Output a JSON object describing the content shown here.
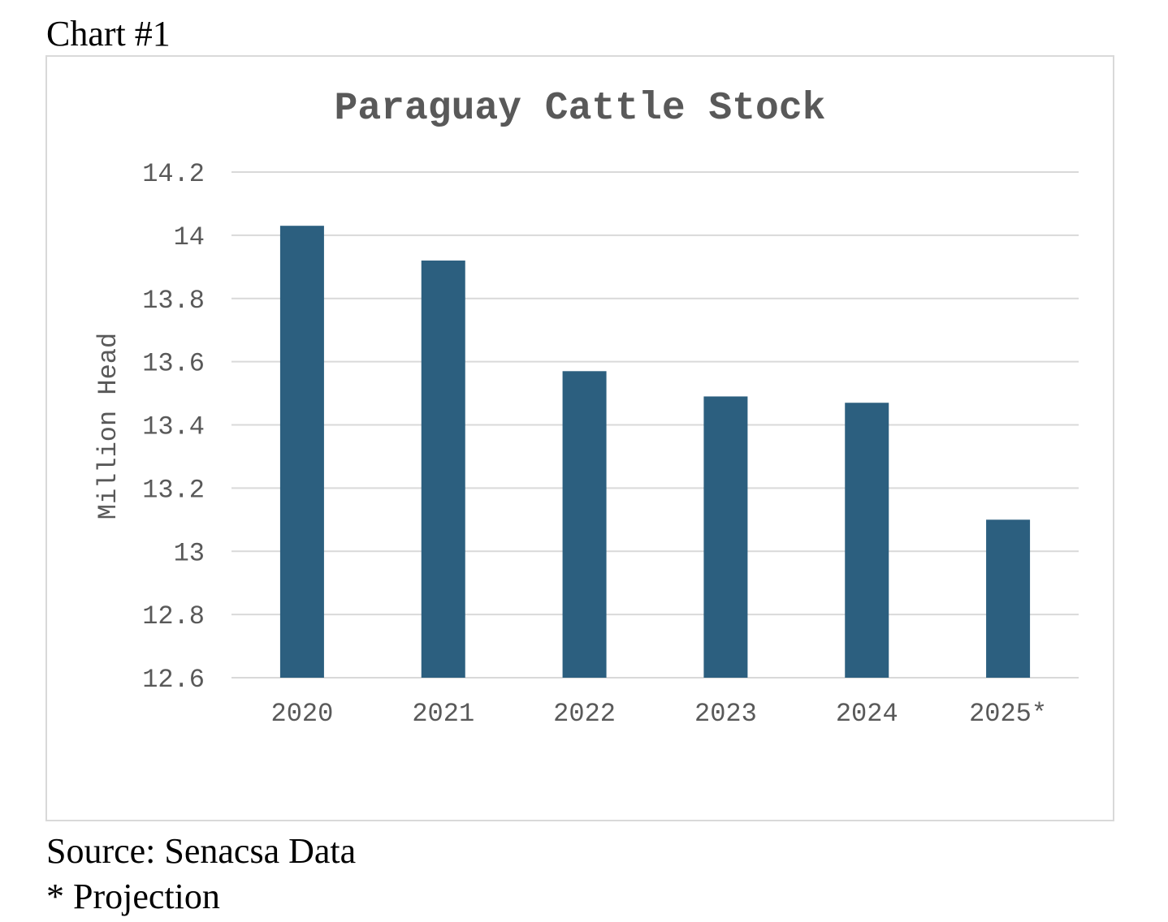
{
  "header": {
    "label": "Chart #1"
  },
  "footer": {
    "source": "Source: Senacsa Data",
    "note": "* Projection"
  },
  "colors": {
    "bar": "#2c5f7f",
    "grid": "#d9d9d9",
    "text": "#595959"
  },
  "chart_data": {
    "type": "bar",
    "title": "Paraguay Cattle Stock",
    "xlabel": "",
    "ylabel": "Million Head",
    "categories": [
      "2020",
      "2021",
      "2022",
      "2023",
      "2024",
      "2025*"
    ],
    "values": [
      14.03,
      13.92,
      13.57,
      13.49,
      13.47,
      13.1
    ],
    "ylim": [
      12.6,
      14.2
    ],
    "yticks": [
      "12.6",
      "12.8",
      "13",
      "13.2",
      "13.4",
      "13.6",
      "13.8",
      "14",
      "14.2"
    ],
    "grid": true,
    "legend": "none"
  }
}
